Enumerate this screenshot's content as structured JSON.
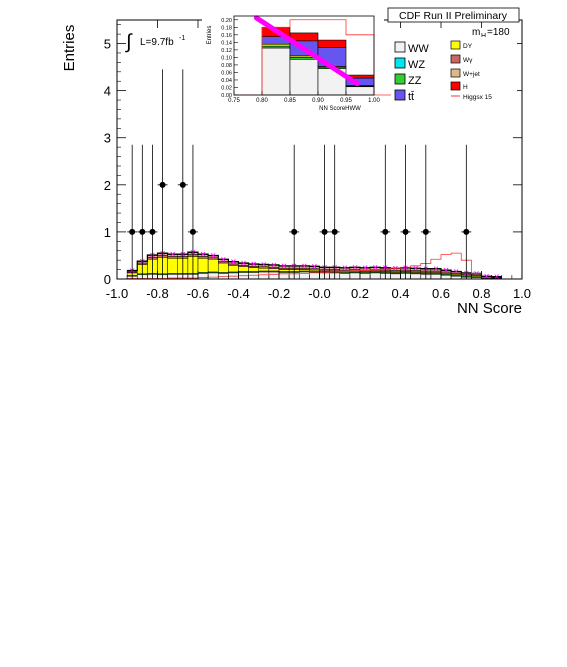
{
  "chart_data": {
    "type": "histogram",
    "header": "CDF Run II Preliminary",
    "luminosity": {
      "prefix": "L=9.7fb",
      "sup": "-1"
    },
    "mass_label": {
      "main": "m",
      "sub": "H",
      "tail": "=180"
    },
    "xlabel": "NN Score",
    "ylabel": "Entries",
    "xlim": [
      -1.0,
      1.0
    ],
    "ylim": [
      0,
      5.5
    ],
    "xticks": [
      "-1.0",
      "-0.8",
      "-0.6",
      "-0.4",
      "-0.2",
      "-0.0",
      "0.2",
      "0.4",
      "0.6",
      "0.8",
      "1.0"
    ],
    "yticks": [
      "0",
      "1",
      "2",
      "3",
      "4",
      "5"
    ],
    "bin_edges_start": -0.95,
    "bin_width": 0.05,
    "stack": [
      {
        "key": "ww",
        "name": "WW",
        "color": "#f2f2f2",
        "values": [
          0.06,
          0.09,
          0.1,
          0.09,
          0.1,
          0.1,
          0.1,
          0.12,
          0.13,
          0.12,
          0.13,
          0.14,
          0.14,
          0.15,
          0.15,
          0.14,
          0.14,
          0.15,
          0.14,
          0.13,
          0.13,
          0.12,
          0.13,
          0.12,
          0.13,
          0.12,
          0.11,
          0.12,
          0.11,
          0.1,
          0.1,
          0.08,
          0.06,
          0.04,
          0.03,
          0.02,
          0.01
        ]
      },
      {
        "key": "zz",
        "name": "ZZ",
        "color": "#33cc33",
        "values": [
          0.02,
          0.02,
          0.02,
          0.02,
          0.02,
          0.02,
          0.02,
          0.02,
          0.02,
          0.02,
          0.02,
          0.02,
          0.02,
          0.02,
          0.02,
          0.02,
          0.02,
          0.02,
          0.02,
          0.02,
          0.02,
          0.02,
          0.02,
          0.02,
          0.02,
          0.02,
          0.02,
          0.02,
          0.02,
          0.02,
          0.02,
          0.02,
          0.02,
          0.02,
          0.02,
          0.01,
          0.01
        ]
      },
      {
        "key": "dy",
        "name": "DY",
        "color": "#ffff00",
        "values": [
          0.05,
          0.2,
          0.3,
          0.35,
          0.32,
          0.32,
          0.36,
          0.3,
          0.27,
          0.2,
          0.14,
          0.1,
          0.08,
          0.06,
          0.05,
          0.04,
          0.04,
          0.03,
          0.03,
          0.02,
          0.02,
          0.02,
          0.02,
          0.02,
          0.02,
          0.02,
          0.02,
          0.02,
          0.02,
          0.02,
          0.02,
          0.02,
          0.02,
          0.02,
          0.02,
          0.01,
          0.01
        ]
      },
      {
        "key": "wgamma",
        "name": "Wγ",
        "color": "#cc6666",
        "values": [
          0.02,
          0.03,
          0.04,
          0.04,
          0.04,
          0.04,
          0.04,
          0.04,
          0.03,
          0.03,
          0.03,
          0.03,
          0.03,
          0.03,
          0.03,
          0.03,
          0.03,
          0.03,
          0.03,
          0.03,
          0.03,
          0.03,
          0.03,
          0.03,
          0.03,
          0.03,
          0.03,
          0.03,
          0.03,
          0.03,
          0.03,
          0.03,
          0.02,
          0.02,
          0.02,
          0.01,
          0.01
        ]
      },
      {
        "key": "wjet",
        "name": "W+jet",
        "color": "#deb887",
        "values": [
          0.02,
          0.03,
          0.04,
          0.04,
          0.04,
          0.04,
          0.04,
          0.04,
          0.04,
          0.04,
          0.04,
          0.04,
          0.04,
          0.04,
          0.04,
          0.04,
          0.04,
          0.04,
          0.04,
          0.04,
          0.04,
          0.04,
          0.04,
          0.04,
          0.04,
          0.04,
          0.04,
          0.04,
          0.04,
          0.04,
          0.04,
          0.03,
          0.03,
          0.02,
          0.02,
          0.01,
          0.01
        ]
      },
      {
        "key": "ttbar",
        "name": "tt̄",
        "color": "#6655ee",
        "values": [
          0.01,
          0.01,
          0.01,
          0.01,
          0.01,
          0.01,
          0.01,
          0.01,
          0.01,
          0.01,
          0.01,
          0.01,
          0.01,
          0.01,
          0.01,
          0.01,
          0.01,
          0.01,
          0.01,
          0.01,
          0.01,
          0.01,
          0.01,
          0.01,
          0.01,
          0.01,
          0.01,
          0.01,
          0.01,
          0.01,
          0.01,
          0.01,
          0.01,
          0.01,
          0.01,
          0.0,
          0.0
        ]
      }
    ],
    "legend_only": [
      {
        "name": "WZ",
        "color": "#00e5ee"
      },
      {
        "name": "H",
        "color": "#ff0000"
      }
    ],
    "signal": {
      "name": "Higgsx 15",
      "color": "#ff3333",
      "values": [
        0.01,
        0.01,
        0.01,
        0.01,
        0.02,
        0.02,
        0.02,
        0.03,
        0.04,
        0.05,
        0.06,
        0.07,
        0.08,
        0.09,
        0.1,
        0.11,
        0.11,
        0.12,
        0.13,
        0.14,
        0.15,
        0.16,
        0.17,
        0.18,
        0.19,
        0.21,
        0.23,
        0.25,
        0.28,
        0.33,
        0.42,
        0.52,
        0.55,
        0.4,
        0.12,
        0.03,
        0.0
      ]
    },
    "data_points": [
      {
        "x": -0.925,
        "y": 1
      },
      {
        "x": -0.875,
        "y": 1
      },
      {
        "x": -0.825,
        "y": 1
      },
      {
        "x": -0.775,
        "y": 2
      },
      {
        "x": -0.675,
        "y": 2
      },
      {
        "x": -0.625,
        "y": 1
      },
      {
        "x": -0.125,
        "y": 1
      },
      {
        "x": 0.025,
        "y": 1
      },
      {
        "x": 0.075,
        "y": 1
      },
      {
        "x": 0.325,
        "y": 1
      },
      {
        "x": 0.425,
        "y": 1
      },
      {
        "x": 0.525,
        "y": 1
      },
      {
        "x": 0.725,
        "y": 1
      }
    ],
    "inset": {
      "xlabel": "NN ScoreHWW",
      "ylabel": "Entries",
      "xlim": [
        0.75,
        1.0
      ],
      "ylim": [
        0,
        0.21
      ],
      "xticks": [
        "0.75",
        "0.80",
        "0.85",
        "0.90",
        "0.95",
        "1.00"
      ],
      "yticks": [
        "0.00",
        "0.02",
        "0.04",
        "0.06",
        "0.08",
        "0.10",
        "0.12",
        "0.14",
        "0.16",
        "0.18",
        "0.20"
      ],
      "bin_edges_start": 0.75,
      "bin_width": 0.05,
      "stack": [
        {
          "key": "ww",
          "values": [
            0,
            0.125,
            0.095,
            0.07,
            0.022,
            0
          ]
        },
        {
          "key": "zz",
          "values": [
            0,
            0.005,
            0.005,
            0.004,
            0.002,
            0
          ]
        },
        {
          "key": "dy",
          "values": [
            0,
            0.005,
            0.004,
            0.002,
            0.001,
            0
          ]
        },
        {
          "key": "ttbar",
          "values": [
            0,
            0.02,
            0.04,
            0.05,
            0.02,
            0
          ]
        },
        {
          "key": "h",
          "color": "#ff0000",
          "values": [
            0,
            0.025,
            0.021,
            0.02,
            0.008,
            0
          ]
        }
      ],
      "signal_outline": [
        0,
        0.18,
        0.2,
        0.2,
        0.16,
        0
      ],
      "band": {
        "color": "#ff00ff",
        "from": [
          0.79,
          0.205
        ],
        "to": [
          0.97,
          0.03
        ]
      }
    }
  }
}
